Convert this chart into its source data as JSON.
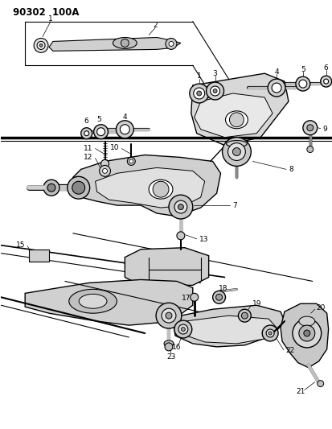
{
  "title": "90302  100A",
  "bg": "#ffffff",
  "figsize": [
    4.14,
    5.33
  ],
  "dpi": 100
}
